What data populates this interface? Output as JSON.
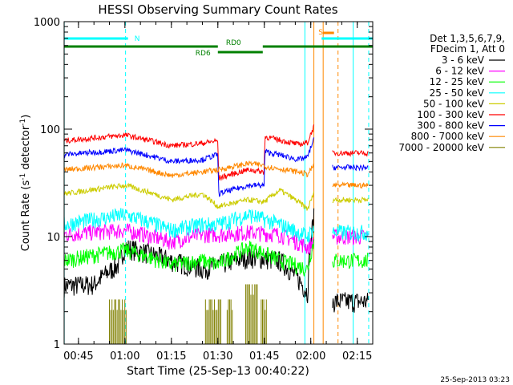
{
  "chart_data": {
    "type": "line",
    "title": "HESSI Observing Summary Count Rates",
    "xlabel": "Start Time (25-Sep-13 00:40:22)",
    "ylabel_main": "Count Rate (s",
    "ylabel_sup1": "-1",
    "ylabel_mid": " detector",
    "ylabel_sup2": "-1",
    "ylabel_end": ")",
    "yscale": "log",
    "ylim": [
      1,
      1000
    ],
    "xlim_minutes": [
      40.37,
      140
    ],
    "x_ticks": [
      {
        "t": 45,
        "label": "00:45"
      },
      {
        "t": 60,
        "label": "01:00"
      },
      {
        "t": 75,
        "label": "01:15"
      },
      {
        "t": 90,
        "label": "01:30"
      },
      {
        "t": 105,
        "label": "01:45"
      },
      {
        "t": 120,
        "label": "02:00"
      },
      {
        "t": 135,
        "label": "02:15"
      }
    ],
    "y_ticks": [
      {
        "v": 1,
        "label": "1"
      },
      {
        "v": 10,
        "label": "10"
      },
      {
        "v": 100,
        "label": "100"
      },
      {
        "v": 1000,
        "label": "1000"
      }
    ],
    "legend_header": [
      "Det 1,3,5,6,7,9,",
      "FDecim 1, Att 0"
    ],
    "legend_position": "right",
    "series": [
      {
        "name": "3 - 6 keV",
        "color": "#000000",
        "points": [
          [
            40.4,
            3.5
          ],
          [
            50,
            3.6
          ],
          [
            58,
            5.5
          ],
          [
            60,
            8
          ],
          [
            75,
            6
          ],
          [
            85,
            5
          ],
          [
            90,
            5.5
          ],
          [
            100,
            6.5
          ],
          [
            110,
            6
          ],
          [
            116,
            4
          ],
          [
            119,
            3
          ],
          [
            121,
            15
          ]
        ],
        "segment2": [
          [
            127,
            2.5
          ],
          [
            138.5,
            2.5
          ]
        ]
      },
      {
        "name": "6 - 12 keV",
        "color": "#ff00ff",
        "points": [
          [
            40.4,
            10.5
          ],
          [
            60,
            11.5
          ],
          [
            75,
            9
          ],
          [
            85,
            10.5
          ],
          [
            90,
            10.5
          ],
          [
            100,
            11
          ],
          [
            110,
            10.5
          ],
          [
            119,
            8
          ],
          [
            121,
            9
          ]
        ],
        "segment2": [
          [
            127,
            10
          ],
          [
            138.5,
            10
          ]
        ]
      },
      {
        "name": "12 - 25 keV",
        "color": "#00ff00",
        "points": [
          [
            40.4,
            6
          ],
          [
            60,
            7.5
          ],
          [
            75,
            5.5
          ],
          [
            85,
            6
          ],
          [
            90,
            5.5
          ],
          [
            100,
            8
          ],
          [
            110,
            6
          ],
          [
            119,
            5
          ],
          [
            121,
            9
          ]
        ],
        "segment2": [
          [
            127,
            6
          ],
          [
            138.5,
            6
          ]
        ]
      },
      {
        "name": "25 - 50 keV",
        "color": "#00ffff",
        "points": [
          [
            40.4,
            13
          ],
          [
            60,
            16
          ],
          [
            75,
            11.5
          ],
          [
            85,
            13
          ],
          [
            90,
            13
          ],
          [
            100,
            16
          ],
          [
            110,
            13
          ],
          [
            119,
            10
          ],
          [
            121,
            12
          ]
        ],
        "segment2": [
          [
            127,
            11
          ],
          [
            138.5,
            11
          ]
        ]
      },
      {
        "name": "50 - 100 keV",
        "color": "#cccc00",
        "points": [
          [
            40.4,
            25
          ],
          [
            60,
            30
          ],
          [
            75,
            22
          ],
          [
            85,
            25
          ],
          [
            90,
            19
          ],
          [
            100,
            22
          ],
          [
            105,
            21
          ],
          [
            110,
            27
          ],
          [
            116,
            21
          ],
          [
            119,
            18
          ],
          [
            121,
            25
          ]
        ],
        "segment2": [
          [
            127,
            22
          ],
          [
            138.5,
            22
          ]
        ]
      },
      {
        "name": "100 - 300 keV",
        "color": "#ff0000",
        "points": [
          [
            40.4,
            78
          ],
          [
            60,
            88
          ],
          [
            75,
            70
          ],
          [
            85,
            74
          ],
          [
            90,
            78
          ],
          [
            90.2,
            35
          ],
          [
            100,
            42
          ],
          [
            105,
            40
          ],
          [
            105.2,
            85
          ],
          [
            116,
            72
          ],
          [
            119,
            75
          ],
          [
            121,
            105
          ]
        ],
        "segment2": [
          [
            127,
            60
          ],
          [
            138.5,
            60
          ]
        ]
      },
      {
        "name": "300 - 800 keV",
        "color": "#0000ff",
        "points": [
          [
            40.4,
            58
          ],
          [
            60,
            64
          ],
          [
            75,
            50
          ],
          [
            85,
            52
          ],
          [
            90,
            58
          ],
          [
            90.2,
            25
          ],
          [
            100,
            30
          ],
          [
            105,
            30
          ],
          [
            105.2,
            62
          ],
          [
            116,
            52
          ],
          [
            119,
            55
          ],
          [
            121,
            80
          ]
        ],
        "segment2": [
          [
            127,
            44
          ],
          [
            138.5,
            44
          ]
        ]
      },
      {
        "name": "800 - 7000 keV",
        "color": "#ff8800",
        "points": [
          [
            40.4,
            42
          ],
          [
            60,
            46
          ],
          [
            75,
            37
          ],
          [
            85,
            40
          ],
          [
            90,
            42
          ],
          [
            90.2,
            42
          ],
          [
            100,
            48
          ],
          [
            105,
            46
          ],
          [
            105.2,
            45
          ],
          [
            116,
            40
          ],
          [
            119,
            38
          ],
          [
            121,
            46
          ]
        ],
        "segment2": [
          [
            127,
            30
          ],
          [
            138.5,
            30
          ]
        ]
      },
      {
        "name": "7000 - 20000 keV",
        "color": "#808000",
        "blocks": [
          [
            55,
            60.5,
            2.6
          ],
          [
            86,
            91,
            2.6
          ],
          [
            93,
            95,
            2.6
          ],
          [
            99,
            103,
            3.6
          ],
          [
            104,
            106,
            2.6
          ]
        ]
      }
    ],
    "attenuator_bars": [
      {
        "label": "N",
        "color": "#00ffff",
        "from": 40.4,
        "to": 61
      },
      {
        "label": "S",
        "color": "#00ffff",
        "from": 123.5,
        "to": 140
      },
      {
        "label": "",
        "color": "#ff8800",
        "from": 124,
        "to": 127.5
      }
    ],
    "state_bars": [
      {
        "label": "",
        "color": "#008000",
        "from": 40.4,
        "to": 90,
        "row": "upper"
      },
      {
        "label": "RD0",
        "color": "#008000",
        "from": 104.5,
        "to": 140,
        "row": "upper"
      },
      {
        "label": "RD6",
        "color": "#008000",
        "from": 90,
        "to": 104.5,
        "row": "lower"
      }
    ],
    "vertical_markers": [
      {
        "t": 40.4,
        "color": "#00ffff",
        "style": "solid"
      },
      {
        "t": 60.2,
        "color": "#00ffff",
        "style": "dashed"
      },
      {
        "t": 118.1,
        "color": "#00ffff",
        "style": "solid"
      },
      {
        "t": 121,
        "color": "#ff8800",
        "style": "solid"
      },
      {
        "t": 124,
        "color": "#ff8800",
        "style": "solid"
      },
      {
        "t": 128.8,
        "color": "#ff8800",
        "style": "dashed"
      },
      {
        "t": 133.7,
        "color": "#00ffff",
        "style": "solid"
      },
      {
        "t": 138.7,
        "color": "#00ffff",
        "style": "dashed"
      }
    ],
    "grid": false
  },
  "footer_timestamp": "25-Sep-2013 03:23"
}
